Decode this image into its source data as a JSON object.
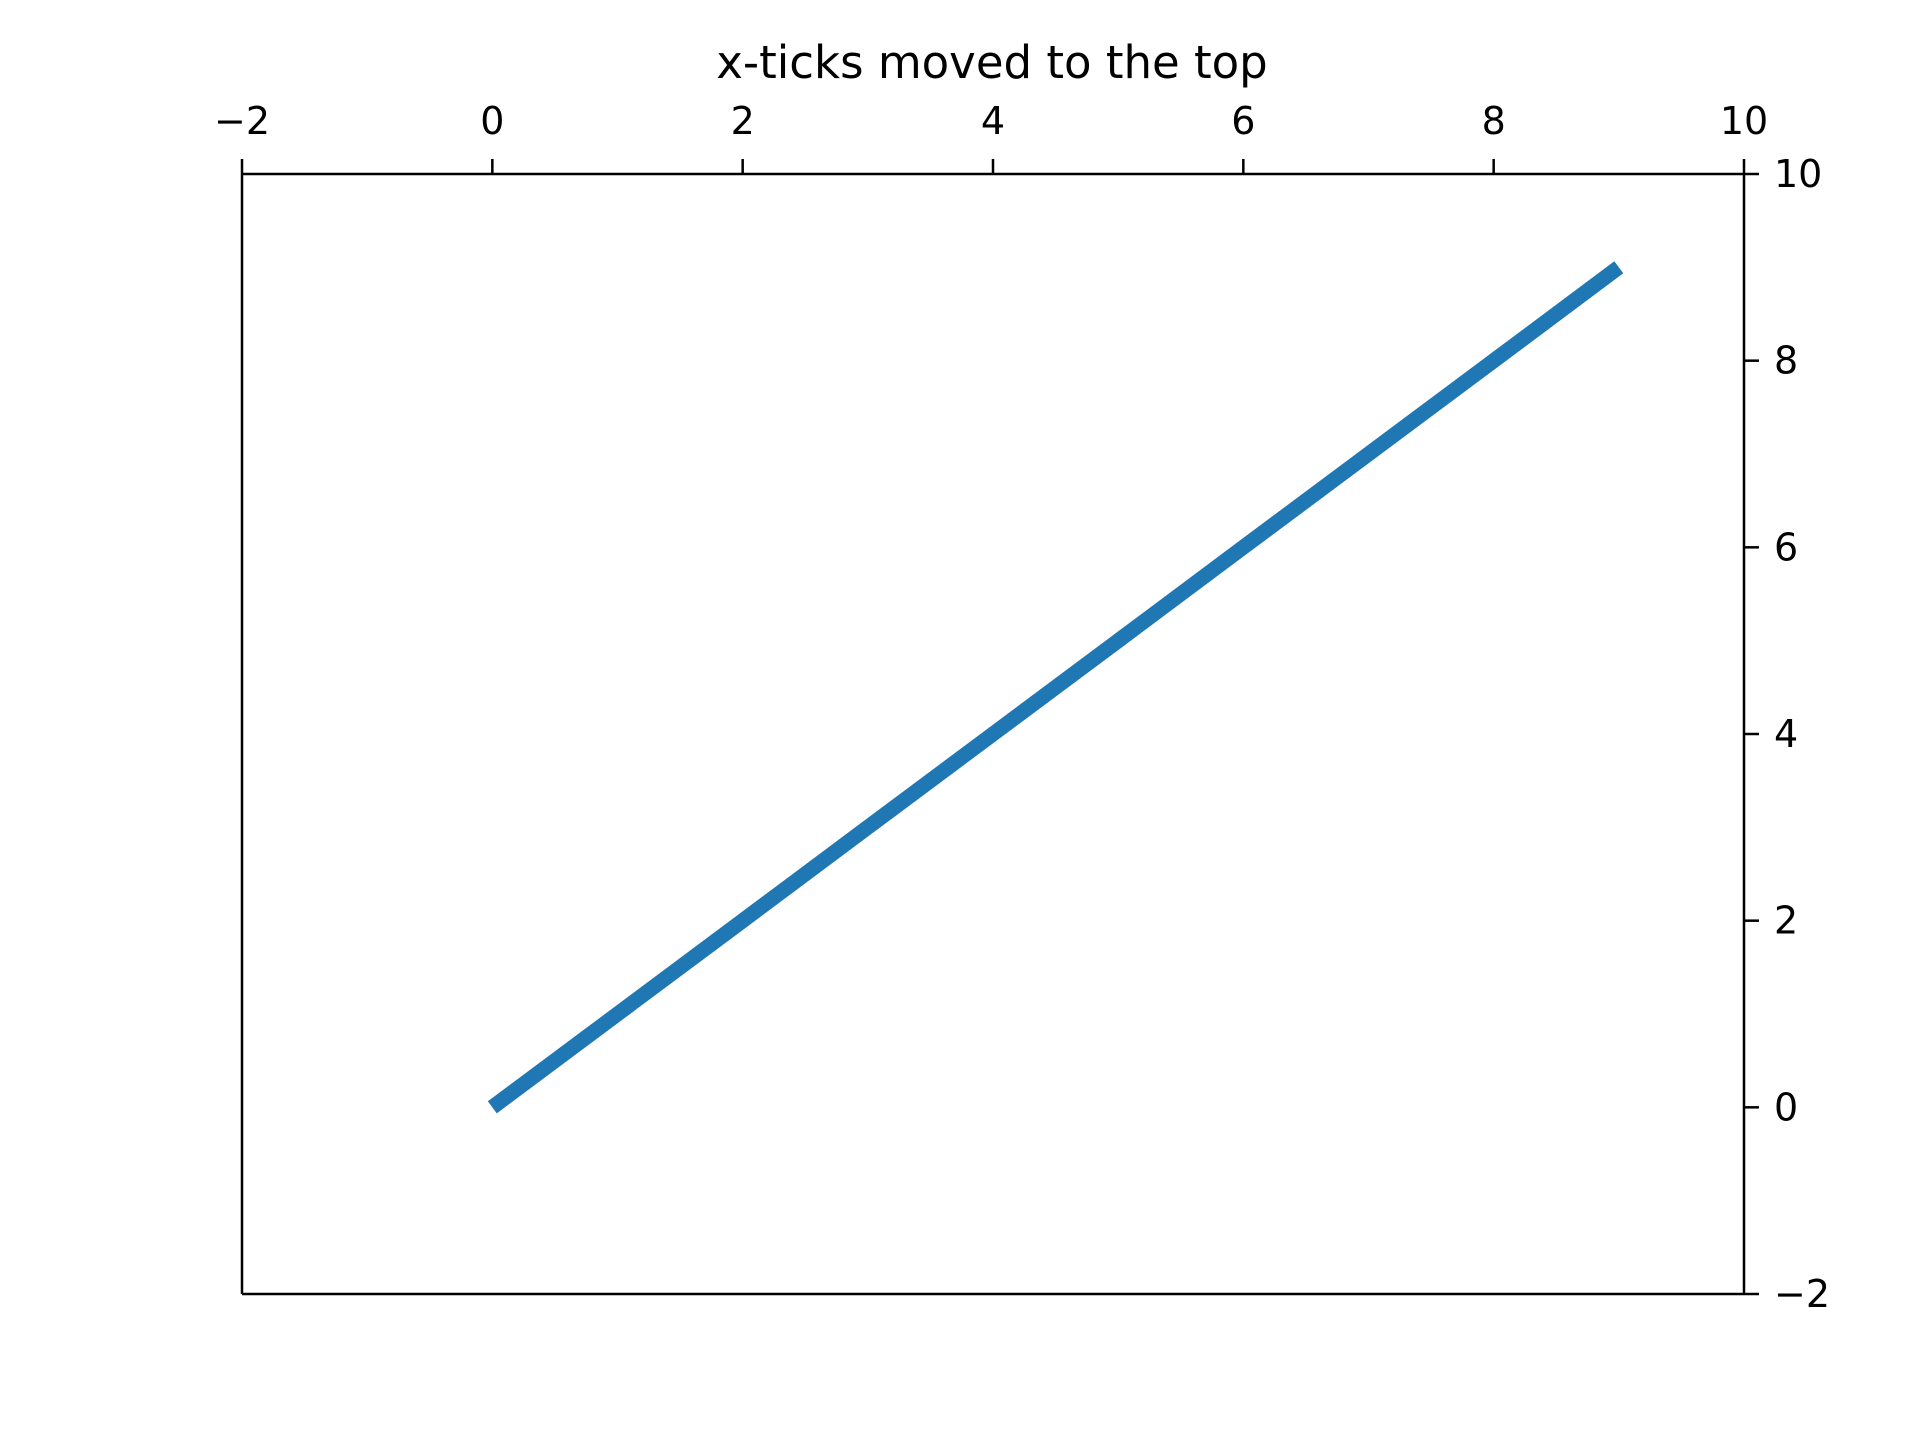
{
  "chart_data": {
    "type": "line",
    "title": "x-ticks moved to the top",
    "xlabel": "",
    "ylabel": "",
    "xlim": [
      -2,
      10
    ],
    "ylim": [
      -2,
      10
    ],
    "x_axis_position": "top",
    "y_axis_position": "right",
    "grid": false,
    "x_ticks": [
      -2,
      0,
      2,
      4,
      6,
      8,
      10
    ],
    "x_tick_labels": [
      "−2",
      "0",
      "2",
      "4",
      "6",
      "8",
      "10"
    ],
    "y_ticks": [
      -2,
      0,
      2,
      4,
      6,
      8,
      10
    ],
    "y_tick_labels": [
      "−2",
      "0",
      "2",
      "4",
      "6",
      "8",
      "10"
    ],
    "series": [
      {
        "x": [
          0,
          1,
          2,
          3,
          4,
          5,
          6,
          7,
          8,
          9
        ],
        "values": [
          0,
          1,
          2,
          3,
          4,
          5,
          6,
          7,
          8,
          9
        ],
        "color": "#1f77b4"
      }
    ]
  }
}
